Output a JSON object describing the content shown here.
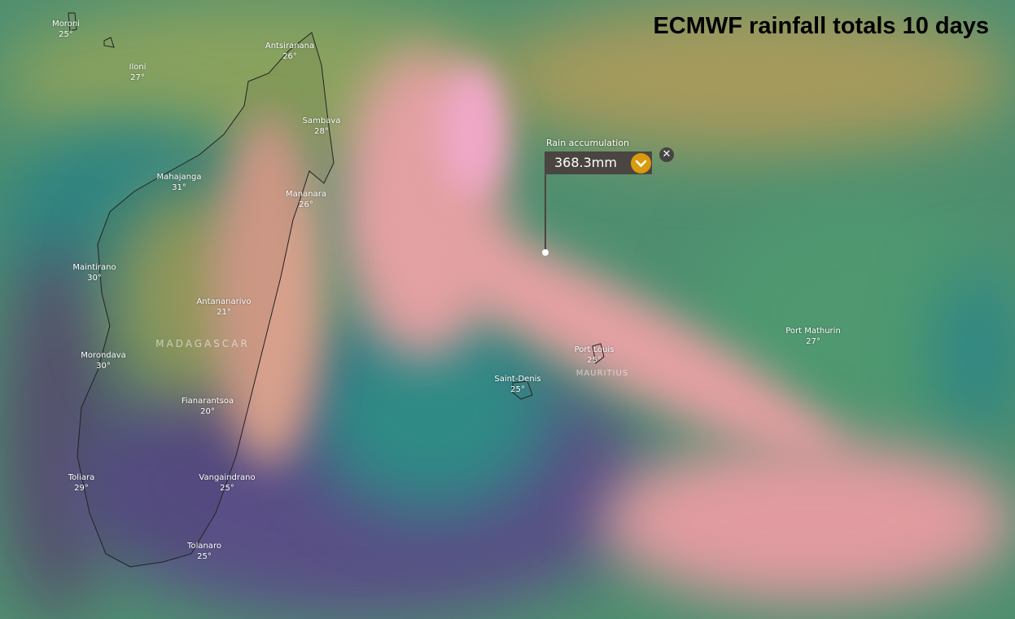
{
  "title": "ECMWF rainfall totals 10 days",
  "picker": {
    "label": "Rain accumulation",
    "value": "368.3mm",
    "expand_icon": "chevron-down-icon",
    "close_icon": "close-icon",
    "accent_color": "#d99a0c"
  },
  "countries": [
    {
      "name": "MADAGASCAR"
    },
    {
      "name": "MAURITIUS"
    }
  ],
  "cities": [
    {
      "name": "Moroni",
      "temp": "25°"
    },
    {
      "name": "Iloni",
      "temp": "27°"
    },
    {
      "name": "Antsiranana",
      "temp": "26°"
    },
    {
      "name": "Sambava",
      "temp": "28°"
    },
    {
      "name": "Mahajanga",
      "temp": "31°"
    },
    {
      "name": "Mananara",
      "temp": "26°"
    },
    {
      "name": "Maintirano",
      "temp": "30°"
    },
    {
      "name": "Antananarivo",
      "temp": "21°"
    },
    {
      "name": "Morondava",
      "temp": "30°"
    },
    {
      "name": "Fianarantsoa",
      "temp": "20°"
    },
    {
      "name": "Toliara",
      "temp": "29°"
    },
    {
      "name": "Vangaindrano",
      "temp": "25°"
    },
    {
      "name": "Tolanaro",
      "temp": "25°"
    },
    {
      "name": "Saint-Denis",
      "temp": "25°"
    },
    {
      "name": "Port Louis",
      "temp": "25°"
    },
    {
      "name": "Port Mathurin",
      "temp": "27°"
    }
  ],
  "palette": {
    "heavy": "#e59aa6",
    "medium": "#a8a35f",
    "light": "#5e9c6e",
    "low": "#2a8080",
    "none": "#5a5580"
  }
}
